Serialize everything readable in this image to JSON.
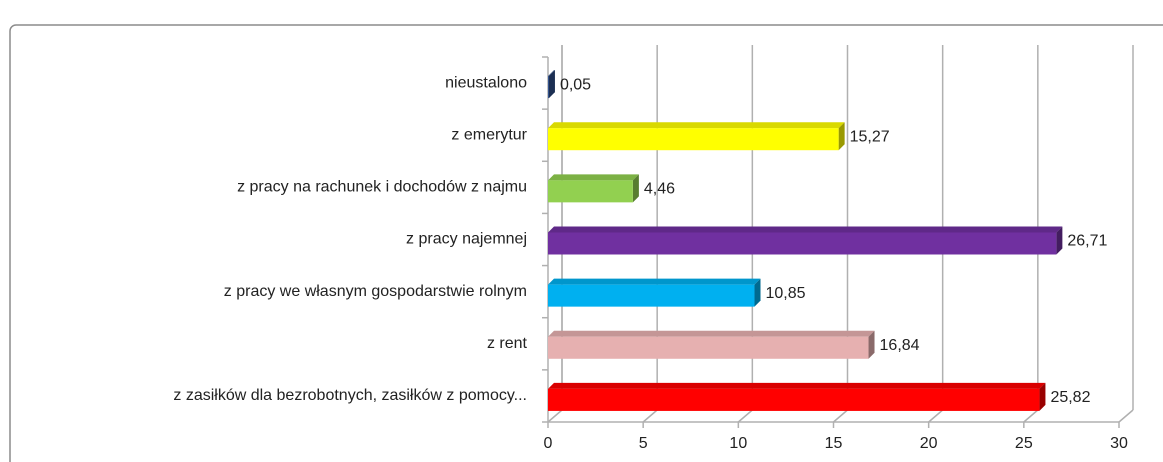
{
  "chart_data": {
    "type": "bar3d_horizontal",
    "categories": [
      "nieustalono",
      "z emerytur",
      "z pracy na rachunek i dochodów z najmu",
      "z pracy najemnej",
      "z pracy we własnym gospodarstwie rolnym",
      "z rent",
      "z zasiłków dla bezrobotnych, zasiłków z pomocy..."
    ],
    "values": [
      0.05,
      15.27,
      4.46,
      26.71,
      10.85,
      16.84,
      25.82
    ],
    "value_labels": [
      "0,05",
      "15,27",
      "4,46",
      "26,71",
      "10,85",
      "16,84",
      "25,82"
    ],
    "colors": [
      "#2e4f8a",
      "#ffff00",
      "#92d050",
      "#7030a0",
      "#00b0f0",
      "#e6b0b0",
      "#ff0000"
    ],
    "xlim": [
      0,
      30
    ],
    "xticks": [
      0,
      5,
      10,
      15,
      20,
      25,
      30
    ],
    "grid": true
  }
}
